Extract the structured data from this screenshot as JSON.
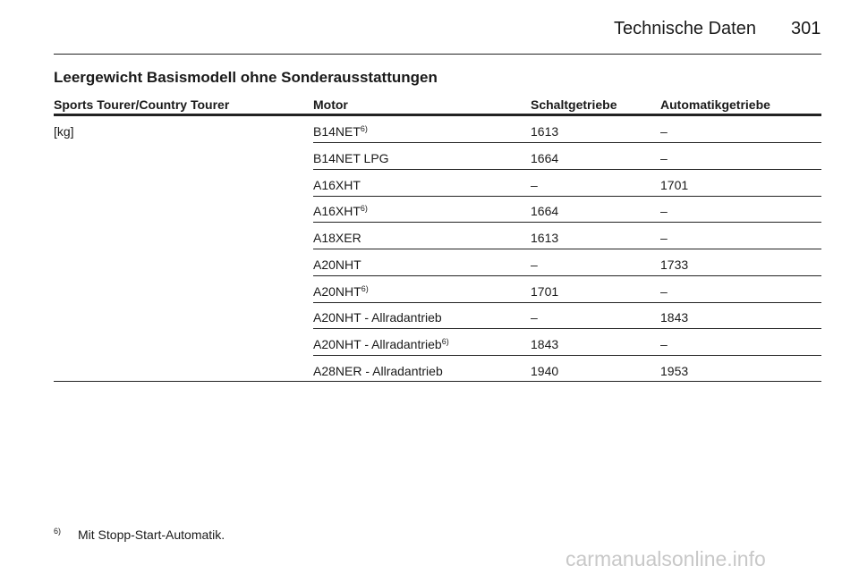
{
  "header": {
    "title": "Technische Daten",
    "page": "301"
  },
  "section_title": "Leergewicht Basismodell ohne Sonderausstattungen",
  "table": {
    "columns": [
      "Sports Tourer/Country Tourer",
      "Motor",
      "Schaltgetriebe",
      "Automatikgetriebe"
    ],
    "unit": "[kg]",
    "rows": [
      {
        "motor": "B14NET",
        "note": "6)",
        "schaltgetriebe": "1613",
        "automatikgetriebe": "–"
      },
      {
        "motor": "B14NET LPG",
        "schaltgetriebe": "1664",
        "automatikgetriebe": "–"
      },
      {
        "motor": "A16XHT",
        "schaltgetriebe": "–",
        "automatikgetriebe": "1701"
      },
      {
        "motor": "A16XHT",
        "note": "6)",
        "schaltgetriebe": "1664",
        "automatikgetriebe": "–"
      },
      {
        "motor": "A18XER",
        "schaltgetriebe": "1613",
        "automatikgetriebe": "–"
      },
      {
        "motor": "A20NHT",
        "schaltgetriebe": "–",
        "automatikgetriebe": "1733"
      },
      {
        "motor": "A20NHT",
        "note": "6)",
        "schaltgetriebe": "1701",
        "automatikgetriebe": "–"
      },
      {
        "motor": "A20NHT - Allradantrieb",
        "schaltgetriebe": "–",
        "automatikgetriebe": "1843"
      },
      {
        "motor": "A20NHT - Allradantrieb",
        "note": "6)",
        "schaltgetriebe": "1843",
        "automatikgetriebe": "–"
      },
      {
        "motor": "A28NER - Allradantrieb",
        "schaltgetriebe": "1940",
        "automatikgetriebe": "1953"
      }
    ]
  },
  "footnote": {
    "mark": "6)",
    "text": "Mit Stopp-Start-Automatik."
  },
  "watermark": "carmanualsonline.info"
}
